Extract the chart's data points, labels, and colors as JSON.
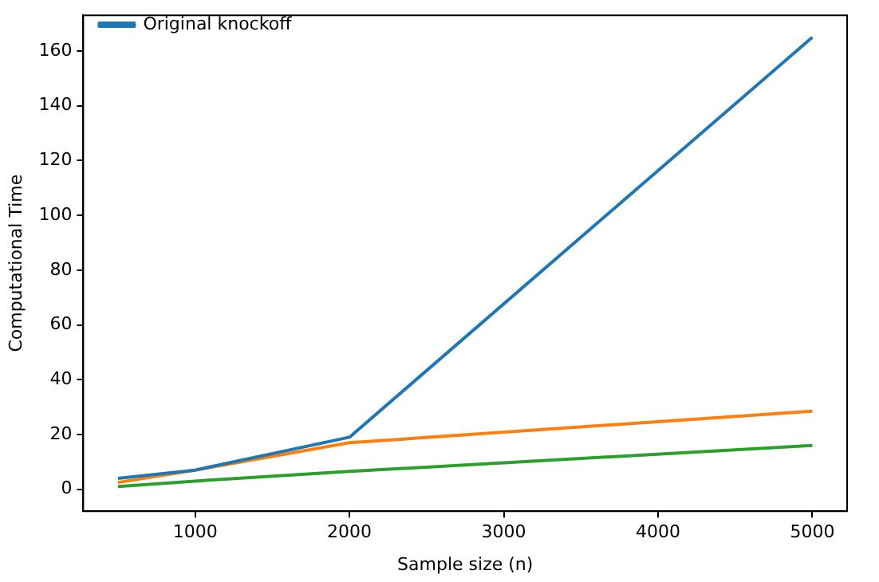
{
  "chart_data": {
    "type": "line",
    "xlabel": "Sample size (n)",
    "ylabel": "Computational Time",
    "x": [
      500,
      1000,
      2000,
      5000
    ],
    "series": [
      {
        "name": "Original knockoff",
        "color": "#1f77b4",
        "values": [
          4,
          7,
          19,
          165
        ]
      },
      {
        "color": "#ff7f0e",
        "values": [
          2.5,
          7,
          17,
          28.5
        ]
      },
      {
        "color": "#2ca02c",
        "values": [
          1,
          3,
          6.5,
          16
        ]
      }
    ],
    "xlim": [
      275,
      5225
    ],
    "xticks": [
      1000,
      2000,
      3000,
      4000,
      5000
    ],
    "ylim": [
      -8,
      173
    ],
    "yticks": [
      0,
      20,
      40,
      60,
      80,
      100,
      120,
      140,
      160
    ],
    "grid": false,
    "legend": "top left",
    "marker": "none",
    "line_style": "solid"
  }
}
